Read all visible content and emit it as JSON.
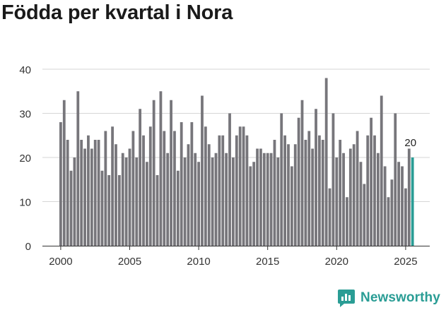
{
  "title": "Födda per kvartal i Nora",
  "brand": {
    "name": "Newsworthy",
    "icon": "newsworthy-logo-icon",
    "color": "#2a9d95"
  },
  "chart_data": {
    "type": "bar",
    "title": "Födda per kvartal i Nora",
    "xlabel": "",
    "ylabel": "",
    "ylim": [
      0,
      40
    ],
    "yticks": [
      0,
      10,
      20,
      30,
      40
    ],
    "xticks": [
      {
        "label": "2000",
        "at": 2000
      },
      {
        "label": "2005",
        "at": 2005
      },
      {
        "label": "2010",
        "at": 2010
      },
      {
        "label": "2015",
        "at": 2015
      },
      {
        "label": "2020",
        "at": 2020
      },
      {
        "label": "2025",
        "at": 2025
      }
    ],
    "grid": true,
    "start_year": 2000,
    "bar_color": "#77767b",
    "highlight_color": "#2a9d95",
    "highlight_last": true,
    "last_value_label": "20",
    "values": [
      28,
      33,
      24,
      17,
      20,
      35,
      24,
      22,
      25,
      22,
      24,
      24,
      17,
      26,
      16,
      27,
      23,
      16,
      21,
      20,
      22,
      26,
      20,
      31,
      25,
      19,
      27,
      33,
      16,
      35,
      26,
      21,
      33,
      26,
      17,
      28,
      20,
      23,
      28,
      21,
      19,
      34,
      27,
      23,
      20,
      21,
      25,
      25,
      21,
      30,
      20,
      25,
      27,
      27,
      25,
      18,
      19,
      22,
      22,
      21,
      21,
      21,
      24,
      20,
      30,
      25,
      23,
      18,
      23,
      29,
      33,
      24,
      26,
      22,
      31,
      25,
      24,
      38,
      13,
      30,
      20,
      24,
      21,
      11,
      22,
      23,
      26,
      19,
      14,
      25,
      29,
      25,
      21,
      34,
      18,
      11,
      15,
      30,
      19,
      18,
      13,
      22,
      20
    ]
  }
}
